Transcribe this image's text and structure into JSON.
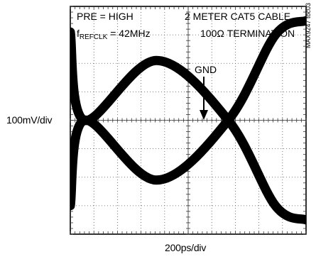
{
  "chart_data": {
    "type": "line",
    "title": "",
    "xlabel": "200ps/div",
    "ylabel": "100mV/div",
    "grid": true,
    "divisions": {
      "x": 10,
      "y": 8
    },
    "xlim_ps": [
      0,
      2000
    ],
    "ylim_mV": [
      -400,
      400
    ],
    "eye": {
      "high_level_mV": 210,
      "low_level_mV": -210,
      "crossings_ps": [
        120,
        1340
      ],
      "eye_center_ps": 730
    },
    "series": [
      {
        "x": [
          0,
          120,
          730,
          1340,
          1740,
          2000
        ],
        "y": [
          310,
          0,
          210,
          0,
          -300,
          -350
        ]
      },
      {
        "x": [
          0,
          120,
          730,
          1340,
          1740,
          2000
        ],
        "y": [
          -300,
          0,
          -210,
          0,
          300,
          350
        ]
      }
    ],
    "annotations": {
      "pre": "PRE = HIGH",
      "refclk_prefix": "f",
      "refclk_sub": "REFCLK",
      "refclk_suffix": " = 42MHz",
      "cable": "2 METER CAT5 CABLE",
      "termination": "100Ω TERMINATION",
      "gnd": "GND",
      "figure_id": "MAX9247 toc03"
    }
  }
}
